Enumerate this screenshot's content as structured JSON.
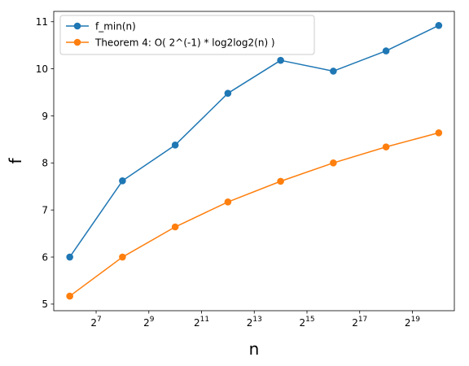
{
  "chart_data": {
    "type": "line",
    "x_scale": "log2",
    "x": [
      64,
      256,
      1024,
      4096,
      16384,
      65536,
      262144,
      1048576
    ],
    "xticks": [
      128,
      512,
      2048,
      8192,
      32768,
      131072,
      524288
    ],
    "xtick_labels": [
      {
        "base": "2",
        "exp": "7"
      },
      {
        "base": "2",
        "exp": "9"
      },
      {
        "base": "2",
        "exp": "11"
      },
      {
        "base": "2",
        "exp": "13"
      },
      {
        "base": "2",
        "exp": "15"
      },
      {
        "base": "2",
        "exp": "17"
      },
      {
        "base": "2",
        "exp": "19"
      }
    ],
    "yticks": [
      5,
      6,
      7,
      8,
      9,
      10,
      11
    ],
    "ytick_labels": [
      "5",
      "6",
      "7",
      "8",
      "9",
      "10",
      "11"
    ],
    "xlim": [
      42,
      1580000
    ],
    "ylim": [
      4.86,
      11.22
    ],
    "xlabel": "n",
    "ylabel": "f",
    "grid": false,
    "legend_position": "top-left",
    "series": [
      {
        "name": "f_min(n)",
        "color": "#1f77b4",
        "marker": "circle",
        "values": [
          6.0,
          7.62,
          8.38,
          9.48,
          10.18,
          9.95,
          10.38,
          10.92
        ]
      },
      {
        "name": "Theorem 4: O( 2^(-1) * log2log2(n) )",
        "color": "#ff7f0e",
        "marker": "circle",
        "values": [
          5.17,
          6.0,
          6.64,
          7.17,
          7.61,
          8.0,
          8.34,
          8.64
        ]
      }
    ]
  }
}
